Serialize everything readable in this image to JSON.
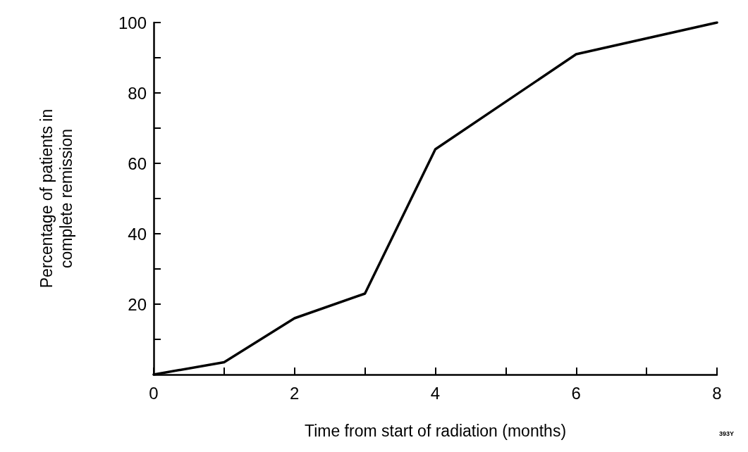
{
  "chart_data": {
    "type": "line",
    "xlabel": "Time from start of radiation (months)",
    "ylabel": "Percentage of patients in complete remission",
    "annotations": [
      "393Y"
    ],
    "x": [
      0,
      1,
      2,
      3,
      4,
      6,
      8
    ],
    "series": [
      {
        "color": "#000000",
        "values": [
          0,
          3.5,
          16,
          23,
          64,
          91,
          100
        ]
      }
    ],
    "xlim": [
      0,
      8
    ],
    "xticks": [
      0,
      {
        "value": 1,
        "label": null
      },
      2,
      {
        "value": 3,
        "label": null
      },
      4,
      {
        "value": 5,
        "label": null
      },
      6,
      {
        "value": 7,
        "label": null
      },
      8
    ],
    "ylim": [
      0,
      100
    ],
    "yticks": [
      {
        "value": 0,
        "label": null
      },
      {
        "value": 10,
        "label": null
      },
      20,
      {
        "value": 30,
        "label": null
      },
      40,
      {
        "value": 50,
        "label": null
      },
      60,
      {
        "value": 70,
        "label": null
      },
      80,
      {
        "value": 90,
        "label": null
      },
      100
    ],
    "grid": false,
    "marker": "none",
    "line_style": "solid"
  }
}
